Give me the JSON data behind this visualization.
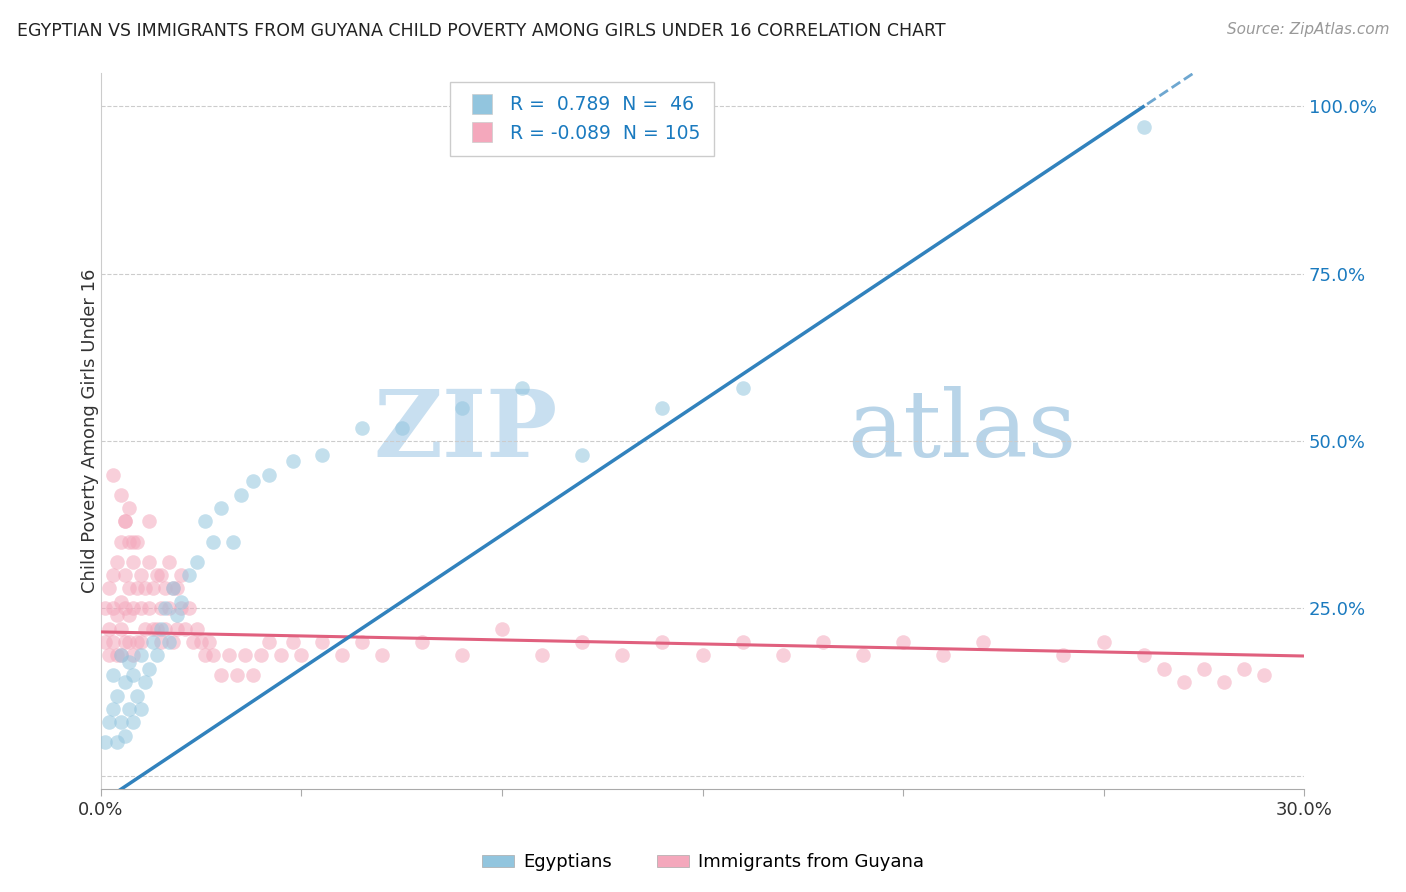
{
  "title": "EGYPTIAN VS IMMIGRANTS FROM GUYANA CHILD POVERTY AMONG GIRLS UNDER 16 CORRELATION CHART",
  "source": "Source: ZipAtlas.com",
  "ylabel": "Child Poverty Among Girls Under 16",
  "xlabel": "",
  "xlim": [
    0.0,
    0.3
  ],
  "ylim": [
    -0.02,
    1.05
  ],
  "ytick_vals": [
    0.0,
    0.25,
    0.5,
    0.75,
    1.0
  ],
  "ytick_labels": [
    "",
    "25.0%",
    "50.0%",
    "75.0%",
    "100.0%"
  ],
  "xtick_vals": [
    0.0,
    0.05,
    0.1,
    0.15,
    0.2,
    0.25,
    0.3
  ],
  "xtick_labels": [
    "0.0%",
    "",
    "",
    "",
    "",
    "",
    "30.0%"
  ],
  "blue_color": "#92c5de",
  "pink_color": "#f4a8bc",
  "blue_line_color": "#3182bd",
  "pink_line_color": "#e0607e",
  "watermark_zip": "ZIP",
  "watermark_atlas": "atlas",
  "blue_line_intercept": -0.04,
  "blue_line_slope": 4.0,
  "pink_line_intercept": 0.215,
  "pink_line_slope": -0.12,
  "egyptians_x": [
    0.001,
    0.002,
    0.003,
    0.003,
    0.004,
    0.004,
    0.005,
    0.005,
    0.006,
    0.006,
    0.007,
    0.007,
    0.008,
    0.008,
    0.009,
    0.01,
    0.01,
    0.011,
    0.012,
    0.013,
    0.014,
    0.015,
    0.016,
    0.017,
    0.018,
    0.019,
    0.02,
    0.022,
    0.024,
    0.026,
    0.028,
    0.03,
    0.033,
    0.035,
    0.038,
    0.042,
    0.048,
    0.055,
    0.065,
    0.075,
    0.09,
    0.105,
    0.12,
    0.14,
    0.16,
    0.26
  ],
  "egyptians_y": [
    0.05,
    0.08,
    0.1,
    0.15,
    0.05,
    0.12,
    0.08,
    0.18,
    0.06,
    0.14,
    0.1,
    0.17,
    0.08,
    0.15,
    0.12,
    0.1,
    0.18,
    0.14,
    0.16,
    0.2,
    0.18,
    0.22,
    0.25,
    0.2,
    0.28,
    0.24,
    0.26,
    0.3,
    0.32,
    0.38,
    0.35,
    0.4,
    0.35,
    0.42,
    0.44,
    0.45,
    0.47,
    0.48,
    0.52,
    0.52,
    0.55,
    0.58,
    0.48,
    0.55,
    0.58,
    0.97
  ],
  "guyana_x": [
    0.001,
    0.001,
    0.002,
    0.002,
    0.002,
    0.003,
    0.003,
    0.003,
    0.004,
    0.004,
    0.004,
    0.005,
    0.005,
    0.005,
    0.005,
    0.006,
    0.006,
    0.006,
    0.006,
    0.007,
    0.007,
    0.007,
    0.007,
    0.008,
    0.008,
    0.008,
    0.009,
    0.009,
    0.009,
    0.01,
    0.01,
    0.01,
    0.011,
    0.011,
    0.012,
    0.012,
    0.012,
    0.013,
    0.013,
    0.014,
    0.014,
    0.015,
    0.015,
    0.015,
    0.016,
    0.016,
    0.017,
    0.017,
    0.018,
    0.018,
    0.019,
    0.019,
    0.02,
    0.02,
    0.021,
    0.022,
    0.023,
    0.024,
    0.025,
    0.026,
    0.027,
    0.028,
    0.03,
    0.032,
    0.034,
    0.036,
    0.038,
    0.04,
    0.042,
    0.045,
    0.048,
    0.05,
    0.055,
    0.06,
    0.065,
    0.07,
    0.08,
    0.09,
    0.1,
    0.11,
    0.12,
    0.13,
    0.14,
    0.15,
    0.16,
    0.17,
    0.18,
    0.19,
    0.2,
    0.21,
    0.22,
    0.24,
    0.25,
    0.26,
    0.265,
    0.27,
    0.275,
    0.28,
    0.285,
    0.29,
    0.005,
    0.006,
    0.007,
    0.008,
    0.003
  ],
  "guyana_y": [
    0.2,
    0.25,
    0.18,
    0.22,
    0.28,
    0.2,
    0.25,
    0.3,
    0.18,
    0.24,
    0.32,
    0.18,
    0.22,
    0.26,
    0.35,
    0.2,
    0.25,
    0.3,
    0.38,
    0.2,
    0.24,
    0.28,
    0.35,
    0.18,
    0.25,
    0.32,
    0.2,
    0.28,
    0.35,
    0.2,
    0.25,
    0.3,
    0.22,
    0.28,
    0.25,
    0.32,
    0.38,
    0.22,
    0.28,
    0.22,
    0.3,
    0.2,
    0.25,
    0.3,
    0.22,
    0.28,
    0.25,
    0.32,
    0.2,
    0.28,
    0.22,
    0.28,
    0.25,
    0.3,
    0.22,
    0.25,
    0.2,
    0.22,
    0.2,
    0.18,
    0.2,
    0.18,
    0.15,
    0.18,
    0.15,
    0.18,
    0.15,
    0.18,
    0.2,
    0.18,
    0.2,
    0.18,
    0.2,
    0.18,
    0.2,
    0.18,
    0.2,
    0.18,
    0.22,
    0.18,
    0.2,
    0.18,
    0.2,
    0.18,
    0.2,
    0.18,
    0.2,
    0.18,
    0.2,
    0.18,
    0.2,
    0.18,
    0.2,
    0.18,
    0.16,
    0.14,
    0.16,
    0.14,
    0.16,
    0.15,
    0.42,
    0.38,
    0.4,
    0.35,
    0.45
  ]
}
